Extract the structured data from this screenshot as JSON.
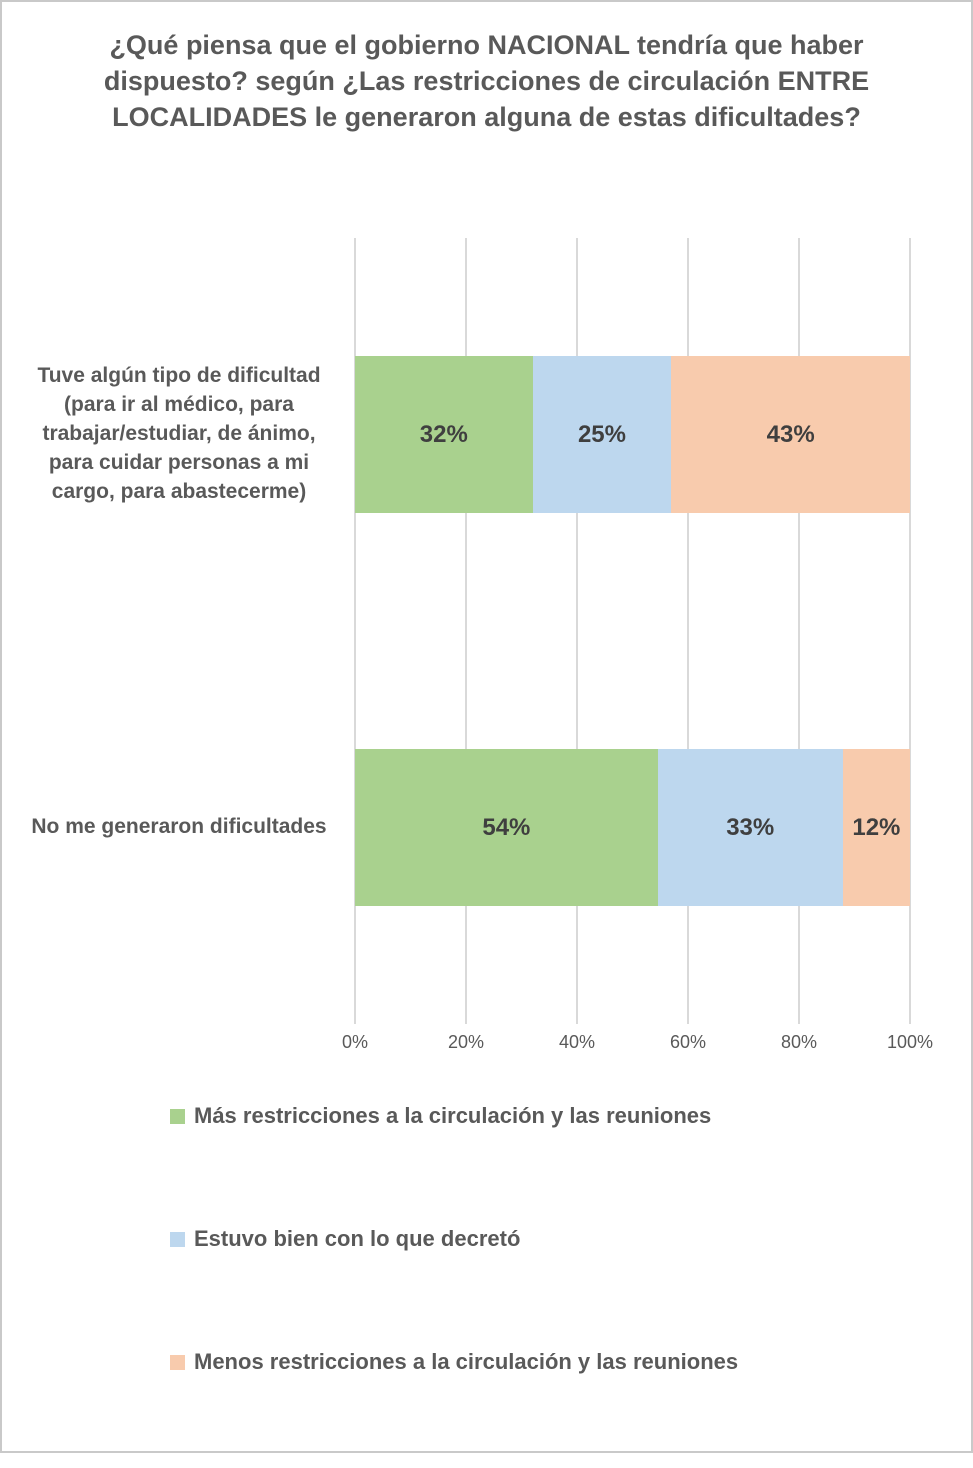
{
  "title": "¿Qué piensa que el gobierno NACIONAL tendría que haber dispuesto? según ¿Las restricciones de circulación ENTRE LOCALIDADES le generaron alguna de estas dificultades?",
  "colors": {
    "text": "#595959",
    "value_label": "#3f3f3f",
    "gridline": "#d9d9d9",
    "frame_border": "#c9c9c9",
    "series_green": "#a9d18e",
    "series_blue": "#bdd7ee",
    "series_orange": "#f8cbad"
  },
  "chart_data": {
    "type": "bar",
    "orientation": "horizontal",
    "stacked": true,
    "percent_stacked": true,
    "title": "¿Qué piensa que el gobierno NACIONAL tendría que haber dispuesto? según ¿Las restricciones de circulación ENTRE LOCALIDADES le generaron alguna de estas dificultades?",
    "categories": [
      "Tuve algún tipo de dificultad (para ir al médico, para trabajar/estudiar, de ánimo, para cuidar personas a mi cargo, para abastecerme)",
      "No me generaron dificultades"
    ],
    "series": [
      {
        "name": "Más restricciones a la circulación y las reuniones",
        "color": "#a9d18e",
        "values": [
          32,
          54
        ],
        "labels": [
          "32%",
          "54%"
        ]
      },
      {
        "name": "Estuvo bien con lo que decretó",
        "color": "#bdd7ee",
        "values": [
          25,
          33
        ],
        "labels": [
          "25%",
          "33%"
        ]
      },
      {
        "name": "Menos restricciones a la circulación y las reuniones",
        "color": "#f8cbad",
        "values": [
          43,
          12
        ],
        "labels": [
          "43%",
          "12%"
        ]
      }
    ],
    "x_axis": {
      "range": [
        0,
        100
      ],
      "tick_labels": [
        "0%",
        "20%",
        "40%",
        "60%",
        "80%",
        "100%"
      ],
      "gridlines": true
    },
    "legend_position": "bottom-left"
  }
}
